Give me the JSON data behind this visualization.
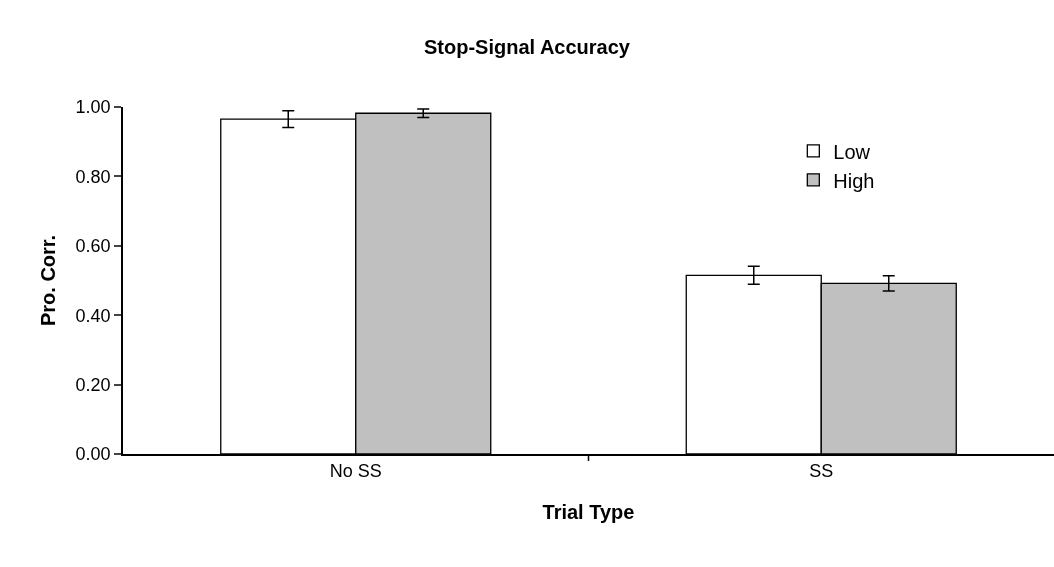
{
  "chart_data": {
    "type": "bar",
    "title": "Stop-Signal Accuracy",
    "xlabel": "Trial Type",
    "ylabel": "Pro. Corr.",
    "categories": [
      "No SS",
      "SS"
    ],
    "series": [
      {
        "name": "Low",
        "color": "#ffffff",
        "values": [
          0.965,
          0.515
        ],
        "errors": [
          0.024,
          0.026
        ]
      },
      {
        "name": "High",
        "color": "#c0c0c0",
        "values": [
          0.982,
          0.492
        ],
        "errors": [
          0.012,
          0.022
        ]
      }
    ],
    "ylim": [
      0,
      1
    ],
    "yticks": [
      {
        "value": 0,
        "label": "0.00"
      },
      {
        "value": 0.2,
        "label": "0.20"
      },
      {
        "value": 0.4,
        "label": "0.40"
      },
      {
        "value": 0.6,
        "label": "0.60"
      },
      {
        "value": 0.8,
        "label": "0.80"
      },
      {
        "value": 1,
        "label": "1.00"
      }
    ],
    "legend": "top right"
  }
}
